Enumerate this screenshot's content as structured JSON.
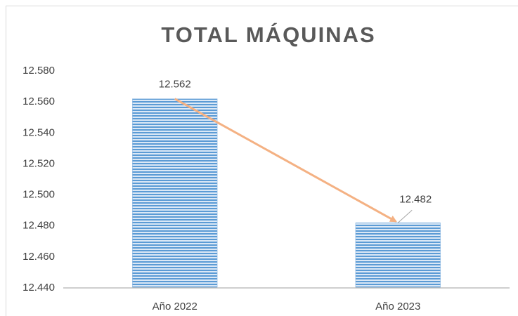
{
  "chart_data": {
    "type": "bar",
    "title": "TOTAL MÁQUINAS",
    "categories": [
      "Año 2022",
      "Año 2023"
    ],
    "values": [
      12562,
      12482
    ],
    "value_labels": [
      "12.562",
      "12.482"
    ],
    "color": "#5b9bd5",
    "ylim": [
      12440,
      12580
    ],
    "yticks": [
      {
        "value": 12440,
        "label": "12.440"
      },
      {
        "value": 12460,
        "label": "12.460"
      },
      {
        "value": 12480,
        "label": "12.480"
      },
      {
        "value": 12500,
        "label": "12.500"
      },
      {
        "value": 12520,
        "label": "12.520"
      },
      {
        "value": 12540,
        "label": "12.540"
      },
      {
        "value": 12560,
        "label": "12.560"
      },
      {
        "value": 12580,
        "label": "12.580"
      }
    ],
    "grid": false
  }
}
